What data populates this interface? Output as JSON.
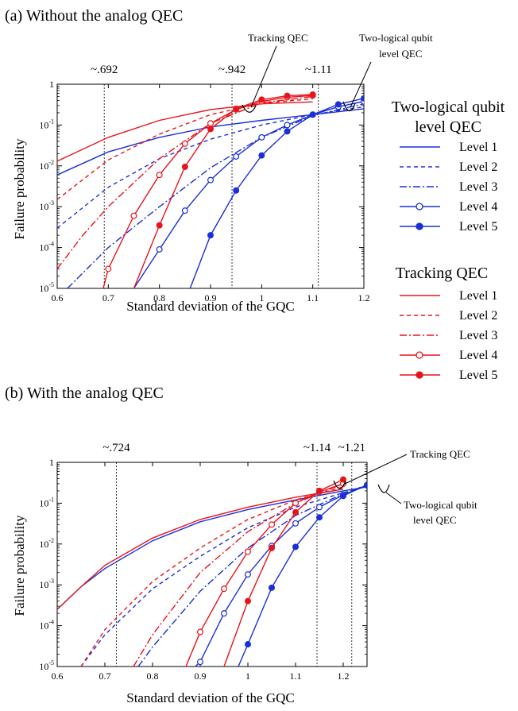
{
  "panels": [
    {
      "id": "a",
      "title": "(a)  Without the analog QEC",
      "xlabel": "Standard deviation of the GQC",
      "ylabel": "Failure probability",
      "xlim": [
        0.6,
        1.2
      ],
      "ylim_log10": [
        -5,
        0
      ],
      "xticks": [
        "0.6",
        "0.7",
        "0.8",
        "0.9",
        "1",
        "1.1",
        "1.2"
      ],
      "yticks": [
        "10-5",
        "10-4",
        "10-3",
        "10-2",
        "10-1",
        "1"
      ],
      "thresholds": [
        {
          "x": 0.692,
          "label": "~.692"
        },
        {
          "x": 0.942,
          "label": "~.942"
        },
        {
          "x": 1.111,
          "label": "~1.11"
        }
      ],
      "callouts": {
        "tracking": "Tracking QEC",
        "two_logical_line1": "Two-logical qubit",
        "two_logical_line2": "level QEC"
      }
    },
    {
      "id": "b",
      "title": "(b)  With the analog QEC",
      "xlabel": "Standard deviation of the GQC",
      "ylabel": "Failure probability",
      "xlim": [
        0.6,
        1.25
      ],
      "ylim_log10": [
        -5,
        0
      ],
      "xticks": [
        "0.6",
        "0.7",
        "0.8",
        "0.9",
        "1",
        "1.1",
        "1.2"
      ],
      "yticks": [
        "10-5",
        "10-4",
        "10-3",
        "10-2",
        "10-1",
        "1"
      ],
      "thresholds": [
        {
          "x": 0.724,
          "label": "~.724"
        },
        {
          "x": 1.145,
          "label": "~1.14"
        },
        {
          "x": 1.218,
          "label": "~1.21"
        }
      ],
      "callouts": {
        "tracking": "Tracking QEC",
        "two_logical_line1": "Two-logical qubit",
        "two_logical_line2": "level QEC"
      }
    }
  ],
  "legend": {
    "two_logical_head1": "Two-logical qubit",
    "two_logical_head2": "level QEC",
    "tracking_head": "Tracking QEC",
    "levels": [
      "Level 1",
      "Level 2",
      "Level 3",
      "Level 4",
      "Level 5"
    ]
  },
  "colors": {
    "two_logical": "#1a2fd6",
    "tracking": "#e8141b"
  },
  "chart_data": [
    {
      "panel": "a",
      "type": "line",
      "title": "Without the analog QEC",
      "xlabel": "Standard deviation of the GQC",
      "ylabel": "Failure probability",
      "xlim": [
        0.6,
        1.2
      ],
      "ylim": [
        1e-05,
        1
      ],
      "yscale": "log",
      "grid": false,
      "series": [
        {
          "name": "Two-logical qubit level QEC Level 1",
          "x": [
            0.6,
            0.7,
            0.8,
            0.9,
            1.0,
            1.1,
            1.2
          ],
          "y": [
            0.006,
            0.022,
            0.05,
            0.09,
            0.13,
            0.18,
            0.25
          ]
        },
        {
          "name": "Two-logical qubit level QEC Level 2",
          "x": [
            0.6,
            0.7,
            0.8,
            0.9,
            1.0,
            1.1,
            1.2
          ],
          "y": [
            0.0003,
            0.003,
            0.015,
            0.045,
            0.1,
            0.18,
            0.28
          ]
        },
        {
          "name": "Two-logical qubit level QEC Level 3",
          "x": [
            0.62,
            0.7,
            0.8,
            0.9,
            1.0,
            1.1,
            1.2
          ],
          "y": [
            1e-05,
            0.0001,
            0.001,
            0.009,
            0.05,
            0.17,
            0.33
          ]
        },
        {
          "name": "Two-logical qubit level QEC Level 4",
          "x": [
            0.75,
            0.8,
            0.85,
            0.9,
            0.95,
            1.0,
            1.05,
            1.1,
            1.15,
            1.2
          ],
          "y": [
            1e-05,
            9e-05,
            0.0008,
            0.0045,
            0.017,
            0.05,
            0.1,
            0.18,
            0.28,
            0.38
          ]
        },
        {
          "name": "Two-logical qubit level QEC Level 5",
          "x": [
            0.86,
            0.9,
            0.95,
            1.0,
            1.05,
            1.1,
            1.15,
            1.2
          ],
          "y": [
            1e-05,
            0.0002,
            0.0025,
            0.018,
            0.07,
            0.18,
            0.32,
            0.45
          ]
        },
        {
          "name": "Tracking QEC Level 1",
          "x": [
            0.6,
            0.7,
            0.8,
            0.9,
            1.0,
            1.1
          ],
          "y": [
            0.013,
            0.05,
            0.13,
            0.24,
            0.33,
            0.37
          ]
        },
        {
          "name": "Tracking QEC Level 2",
          "x": [
            0.6,
            0.7,
            0.8,
            0.9,
            1.0,
            1.1
          ],
          "y": [
            0.0015,
            0.014,
            0.06,
            0.18,
            0.34,
            0.44
          ]
        },
        {
          "name": "Tracking QEC Level 3",
          "x": [
            0.6,
            0.65,
            0.7,
            0.8,
            0.9,
            1.0,
            1.1
          ],
          "y": [
            3e-05,
            0.0002,
            0.001,
            0.015,
            0.11,
            0.35,
            0.5
          ]
        },
        {
          "name": "Tracking QEC Level 4",
          "x": [
            0.69,
            0.7,
            0.75,
            0.8,
            0.85,
            0.9,
            0.95,
            1.0,
            1.05,
            1.1
          ],
          "y": [
            1e-05,
            3e-05,
            0.0006,
            0.006,
            0.035,
            0.11,
            0.24,
            0.38,
            0.48,
            0.53
          ]
        },
        {
          "name": "Tracking QEC Level 5",
          "x": [
            0.75,
            0.8,
            0.85,
            0.9,
            0.95,
            1.0,
            1.05,
            1.1
          ],
          "y": [
            1e-05,
            0.00035,
            0.0095,
            0.08,
            0.25,
            0.42,
            0.52,
            0.56
          ]
        }
      ]
    },
    {
      "panel": "b",
      "type": "line",
      "title": "With the analog QEC",
      "xlabel": "Standard deviation of the GQC",
      "ylabel": "Failure probability",
      "xlim": [
        0.6,
        1.25
      ],
      "ylim": [
        1e-05,
        1
      ],
      "yscale": "log",
      "grid": false,
      "series": [
        {
          "name": "Two-logical qubit level QEC Level 1",
          "x": [
            0.6,
            0.65,
            0.7,
            0.8,
            0.9,
            1.0,
            1.1,
            1.2,
            1.25
          ],
          "y": [
            0.00025,
            0.0009,
            0.0025,
            0.012,
            0.035,
            0.07,
            0.12,
            0.2,
            0.25
          ]
        },
        {
          "name": "Two-logical qubit level QEC Level 2",
          "x": [
            0.65,
            0.7,
            0.8,
            0.9,
            1.0,
            1.1,
            1.2,
            1.25
          ],
          "y": [
            1e-05,
            6e-05,
            0.0008,
            0.005,
            0.025,
            0.08,
            0.18,
            0.26
          ]
        },
        {
          "name": "Two-logical qubit level QEC Level 3",
          "x": [
            0.77,
            0.8,
            0.9,
            1.0,
            1.1,
            1.2,
            1.25
          ],
          "y": [
            1e-05,
            3e-05,
            0.0007,
            0.008,
            0.05,
            0.17,
            0.28
          ]
        },
        {
          "name": "Two-logical qubit level QEC Level 4",
          "x": [
            0.89,
            0.9,
            0.95,
            1.0,
            1.05,
            1.1,
            1.15,
            1.2,
            1.25
          ],
          "y": [
            1e-05,
            1.3e-05,
            0.0002,
            0.0018,
            0.009,
            0.032,
            0.08,
            0.16,
            0.27
          ]
        },
        {
          "name": "Two-logical qubit level QEC Level 5",
          "x": [
            0.98,
            1.0,
            1.05,
            1.1,
            1.15,
            1.2,
            1.25
          ],
          "y": [
            1e-05,
            3.5e-05,
            0.00085,
            0.0085,
            0.045,
            0.15,
            0.28
          ]
        },
        {
          "name": "Tracking QEC Level 1",
          "x": [
            0.6,
            0.65,
            0.7,
            0.8,
            0.9,
            1.0,
            1.1,
            1.2
          ],
          "y": [
            0.00025,
            0.0009,
            0.003,
            0.014,
            0.04,
            0.08,
            0.14,
            0.22
          ]
        },
        {
          "name": "Tracking QEC Level 2",
          "x": [
            0.65,
            0.7,
            0.8,
            0.9,
            1.0,
            1.1,
            1.2
          ],
          "y": [
            1e-05,
            8e-05,
            0.0012,
            0.008,
            0.04,
            0.12,
            0.25
          ]
        },
        {
          "name": "Tracking QEC Level 3",
          "x": [
            0.76,
            0.8,
            0.9,
            1.0,
            1.1,
            1.2
          ],
          "y": [
            1e-05,
            6e-05,
            0.002,
            0.02,
            0.1,
            0.3
          ]
        },
        {
          "name": "Tracking QEC Level 4",
          "x": [
            0.87,
            0.9,
            0.95,
            1.0,
            1.05,
            1.1,
            1.15,
            1.2
          ],
          "y": [
            1e-05,
            7e-05,
            0.0008,
            0.0065,
            0.03,
            0.1,
            0.19,
            0.3
          ]
        },
        {
          "name": "Tracking QEC Level 5",
          "x": [
            0.95,
            1.0,
            1.05,
            1.1,
            1.15,
            1.2
          ],
          "y": [
            1e-05,
            0.0004,
            0.008,
            0.06,
            0.2,
            0.38
          ]
        }
      ]
    }
  ]
}
